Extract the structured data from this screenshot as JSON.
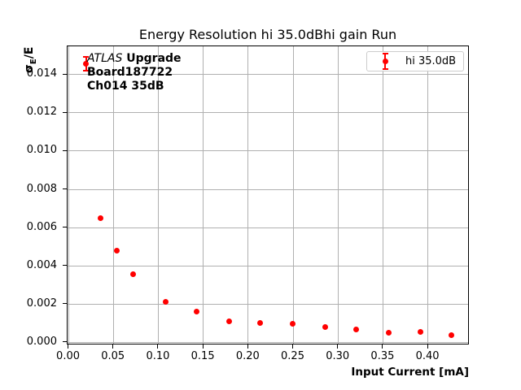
{
  "figure": {
    "title": "Energy Resolution hi 35.0dBhi gain Run",
    "x_axis_label": "Input Current [mA]",
    "y_axis_label": {
      "sigma": "σ",
      "subscript": "E",
      "suffix": "/E"
    },
    "annotation": {
      "experiment": "ATLAS",
      "experiment_suffix": " Upgrade",
      "board": "Board187722",
      "channel": "Ch014 35dB"
    },
    "legend": {
      "entry": "hi 35.0dB",
      "marker_color": "#ff0000"
    }
  },
  "chart_data": {
    "type": "scatter",
    "title": "Energy Resolution hi 35.0dBhi gain Run",
    "xlabel": "Input Current [mA]",
    "ylabel": "σ_E/E",
    "grid": true,
    "grid_color": "#b0b0b0",
    "legend_position": "upper right",
    "legend_entries": [
      "hi 35.0dB"
    ],
    "xlim": [
      -0.0014,
      0.4461
    ],
    "ylim": [
      -0.00013,
      0.0155
    ],
    "x_ticks": [
      0.0,
      0.05,
      0.1,
      0.15,
      0.2,
      0.25,
      0.3,
      0.35,
      0.4
    ],
    "x_tick_labels": [
      "0.00",
      "0.05",
      "0.10",
      "0.15",
      "0.20",
      "0.25",
      "0.30",
      "0.35",
      "0.40"
    ],
    "y_ticks": [
      0.0,
      0.002,
      0.004,
      0.006,
      0.008,
      0.01,
      0.012,
      0.014
    ],
    "y_tick_labels": [
      "0.000",
      "0.002",
      "0.004",
      "0.006",
      "0.008",
      "0.010",
      "0.012",
      "0.014"
    ],
    "series": [
      {
        "name": "hi 35.0dB",
        "color": "#ff0000",
        "marker": "circle",
        "points": [
          {
            "x": 0.019,
            "y": 0.0146,
            "yerr": 0.00036
          },
          {
            "x": 0.0355,
            "y": 0.0065,
            "yerr": 0
          },
          {
            "x": 0.0535,
            "y": 0.0048,
            "yerr": 0
          },
          {
            "x": 0.0715,
            "y": 0.0036,
            "yerr": 0
          },
          {
            "x": 0.108,
            "y": 0.00215,
            "yerr": 0
          },
          {
            "x": 0.142,
            "y": 0.00163,
            "yerr": 0
          },
          {
            "x": 0.178,
            "y": 0.00112,
            "yerr": 0
          },
          {
            "x": 0.213,
            "y": 0.00102,
            "yerr": 0
          },
          {
            "x": 0.249,
            "y": 0.00098,
            "yerr": 0
          },
          {
            "x": 0.285,
            "y": 0.00082,
            "yerr": 0
          },
          {
            "x": 0.32,
            "y": 0.0007,
            "yerr": 0
          },
          {
            "x": 0.356,
            "y": 0.00052,
            "yerr": 0
          },
          {
            "x": 0.391,
            "y": 0.00055,
            "yerr": 0
          },
          {
            "x": 0.426,
            "y": 0.00042,
            "yerr": 0
          }
        ]
      }
    ]
  }
}
